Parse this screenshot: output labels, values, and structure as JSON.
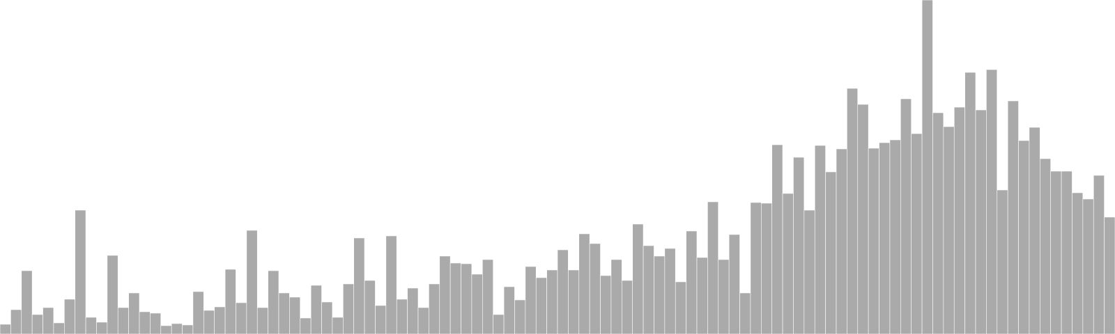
{
  "chart_data": {
    "type": "bar",
    "grid": false,
    "legend": "none",
    "ylim": [
      0,
      480
    ],
    "bar_color": "#aaaaaa",
    "bar_edge_color": "#ffffff",
    "series": [
      {
        "values": [
          14,
          35,
          91,
          28,
          38,
          16,
          50,
          178,
          24,
          17,
          113,
          38,
          59,
          32,
          30,
          12,
          15,
          13,
          61,
          34,
          39,
          93,
          45,
          149,
          38,
          91,
          59,
          53,
          23,
          70,
          46,
          24,
          72,
          138,
          77,
          41,
          141,
          50,
          66,
          38,
          72,
          112,
          102,
          101,
          86,
          107,
          28,
          68,
          49,
          97,
          81,
          92,
          121,
          92,
          144,
          130,
          84,
          107,
          77,
          158,
          127,
          112,
          123,
          75,
          148,
          110,
          190,
          107,
          143,
          59,
          189,
          188,
          272,
          202,
          254,
          178,
          271,
          233,
          266,
          353,
          330,
          267,
          275,
          279,
          338,
          288,
          480,
          318,
          298,
          326,
          376,
          322,
          380,
          207,
          335,
          278,
          297,
          252,
          234,
          234,
          203,
          194,
          228,
          168
        ]
      }
    ]
  }
}
